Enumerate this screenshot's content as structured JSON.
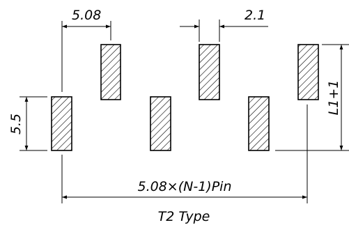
{
  "labels": {
    "pitch": "5.08",
    "pad_width": "2.1",
    "stagger": "5.5",
    "pad_length": "L1+1",
    "total_span": "5.08×(N-1)Pin",
    "type": "T2  Type"
  },
  "colors": {
    "line": "#000000",
    "background": "#ffffff"
  }
}
